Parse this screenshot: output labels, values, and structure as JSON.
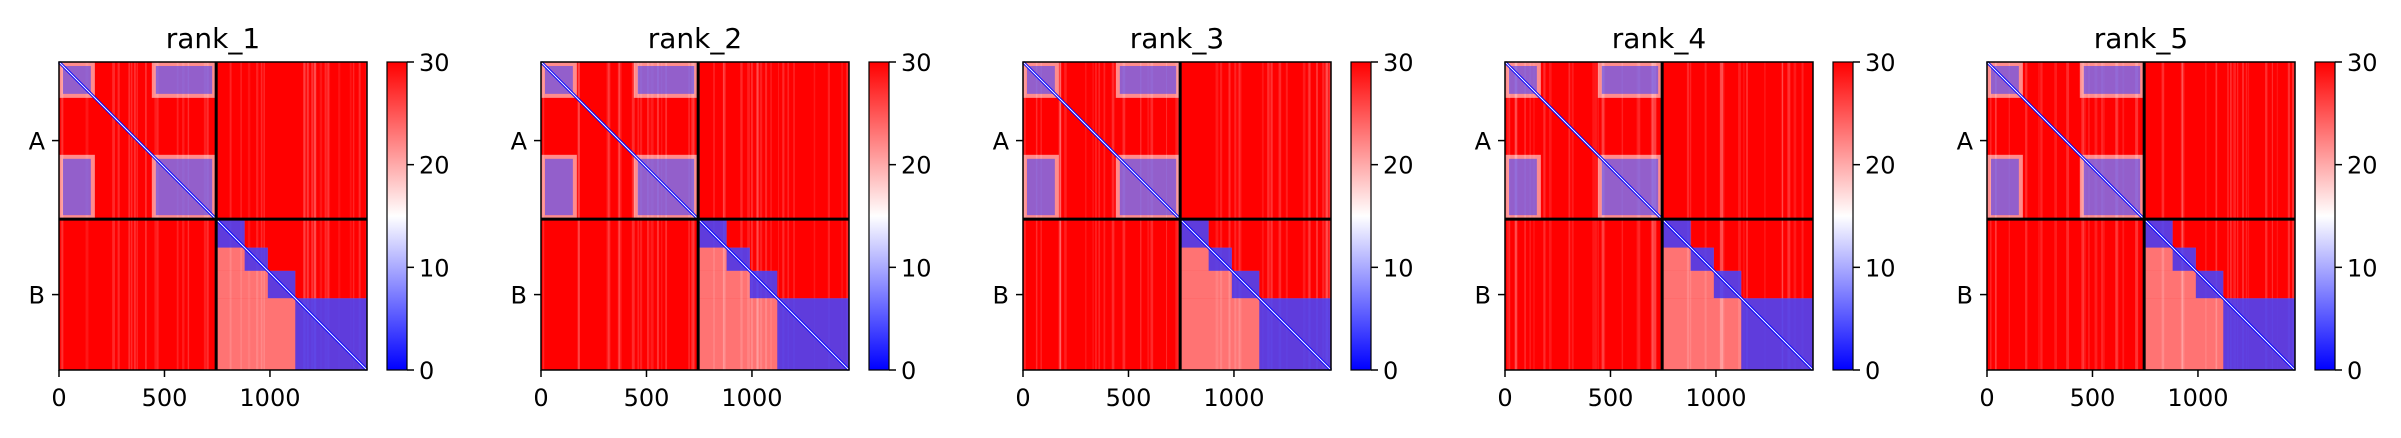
{
  "chart_data": [
    {
      "type": "heatmap",
      "title": "rank_1",
      "xlabel": "",
      "ylabel": "",
      "xlim": [
        0,
        1460
      ],
      "ylim": [
        1460,
        0
      ],
      "x_ticks": [
        "0",
        "500",
        "1000"
      ],
      "y_ticks": [
        "A",
        "B"
      ],
      "chain_boundary": 745,
      "colorbar": {
        "min": 0,
        "max": 30,
        "ticks": [
          "0",
          "10",
          "20",
          "30"
        ],
        "colors": [
          "#0000ff",
          "#ffffff",
          "#ff0000"
        ]
      }
    },
    {
      "type": "heatmap",
      "title": "rank_2",
      "xlabel": "",
      "ylabel": "",
      "xlim": [
        0,
        1460
      ],
      "ylim": [
        1460,
        0
      ],
      "x_ticks": [
        "0",
        "500",
        "1000"
      ],
      "y_ticks": [
        "A",
        "B"
      ],
      "chain_boundary": 745,
      "colorbar": {
        "min": 0,
        "max": 30,
        "ticks": [
          "0",
          "10",
          "20",
          "30"
        ],
        "colors": [
          "#0000ff",
          "#ffffff",
          "#ff0000"
        ]
      }
    },
    {
      "type": "heatmap",
      "title": "rank_3",
      "xlabel": "",
      "ylabel": "",
      "xlim": [
        0,
        1460
      ],
      "ylim": [
        1460,
        0
      ],
      "x_ticks": [
        "0",
        "500",
        "1000"
      ],
      "y_ticks": [
        "A",
        "B"
      ],
      "chain_boundary": 745,
      "colorbar": {
        "min": 0,
        "max": 30,
        "ticks": [
          "0",
          "10",
          "20",
          "30"
        ],
        "colors": [
          "#0000ff",
          "#ffffff",
          "#ff0000"
        ]
      }
    },
    {
      "type": "heatmap",
      "title": "rank_4",
      "xlabel": "",
      "ylabel": "",
      "xlim": [
        0,
        1460
      ],
      "ylim": [
        1460,
        0
      ],
      "x_ticks": [
        "0",
        "500",
        "1000"
      ],
      "y_ticks": [
        "A",
        "B"
      ],
      "chain_boundary": 745,
      "colorbar": {
        "min": 0,
        "max": 30,
        "ticks": [
          "0",
          "10",
          "20",
          "30"
        ],
        "colors": [
          "#0000ff",
          "#ffffff",
          "#ff0000"
        ]
      }
    },
    {
      "type": "heatmap",
      "title": "rank_5",
      "xlabel": "",
      "ylabel": "",
      "xlim": [
        0,
        1460
      ],
      "ylim": [
        1460,
        0
      ],
      "x_ticks": [
        "0",
        "500",
        "1000"
      ],
      "y_ticks": [
        "A",
        "B"
      ],
      "chain_boundary": 745,
      "colorbar": {
        "min": 0,
        "max": 30,
        "ticks": [
          "0",
          "10",
          "20",
          "30"
        ],
        "colors": [
          "#0000ff",
          "#ffffff",
          "#ff0000"
        ]
      }
    }
  ]
}
